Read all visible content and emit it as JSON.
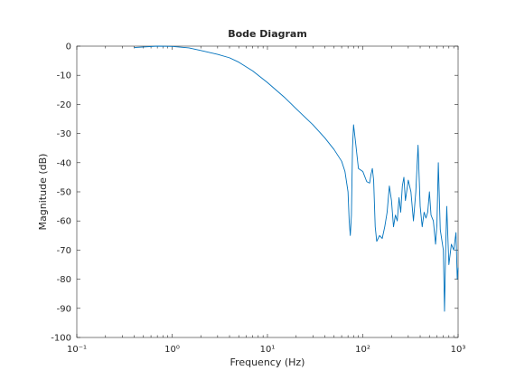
{
  "chart_data": {
    "type": "line",
    "title": "Bode Diagram",
    "xlabel": "Frequency  (Hz)",
    "ylabel": "Magnitude (dB)",
    "xscale": "log",
    "xlim": [
      0.1,
      1000
    ],
    "ylim": [
      -100,
      0
    ],
    "xticks": [
      {
        "value": 0.1,
        "label": "10⁻¹"
      },
      {
        "value": 1,
        "label": "10⁰"
      },
      {
        "value": 10,
        "label": "10¹"
      },
      {
        "value": 100,
        "label": "10²"
      },
      {
        "value": 1000,
        "label": "10³"
      }
    ],
    "xminorticks": [
      0.2,
      0.3,
      0.4,
      0.5,
      0.6,
      0.7,
      0.8,
      0.9,
      2,
      3,
      4,
      5,
      6,
      7,
      8,
      9,
      20,
      30,
      40,
      50,
      60,
      70,
      80,
      90,
      200,
      300,
      400,
      500,
      600,
      700,
      800,
      900
    ],
    "yticks": [
      -100,
      -90,
      -80,
      -70,
      -60,
      -50,
      -40,
      -30,
      -20,
      -10,
      0
    ],
    "series": [
      {
        "name": "Magnitude",
        "color": "#0072bd",
        "x": [
          0.4,
          0.5,
          0.7,
          1,
          1.5,
          2,
          3,
          4,
          5,
          7,
          10,
          15,
          20,
          30,
          40,
          50,
          60,
          65,
          70,
          72,
          74,
          76,
          78,
          80,
          84,
          90,
          100,
          110,
          118,
          122,
          126,
          130,
          135,
          140,
          150,
          160,
          170,
          180,
          190,
          200,
          210,
          220,
          230,
          240,
          250,
          260,
          270,
          280,
          300,
          320,
          340,
          360,
          380,
          400,
          420,
          440,
          460,
          480,
          500,
          520,
          550,
          580,
          600,
          620,
          650,
          700,
          720,
          740,
          760,
          800,
          850,
          900,
          950,
          980,
          1000
        ],
        "values": [
          -0.5,
          -0.3,
          0,
          -0.1,
          -0.6,
          -1.5,
          -2.8,
          -4,
          -5.5,
          -8.5,
          -12.5,
          -17.5,
          -21.5,
          -27,
          -31.5,
          -35.5,
          -39.5,
          -43,
          -50,
          -60,
          -65,
          -58,
          -35,
          -27,
          -33,
          -42,
          -43,
          -46.5,
          -47,
          -44,
          -42,
          -46,
          -62,
          -67,
          -65,
          -66,
          -62,
          -57,
          -48,
          -53,
          -62,
          -58,
          -60,
          -52,
          -57,
          -48,
          -45,
          -53,
          -46,
          -50,
          -60,
          -50,
          -34,
          -55,
          -62,
          -57,
          -59,
          -57,
          -50,
          -58,
          -60,
          -68,
          -61,
          -40,
          -63,
          -70,
          -91,
          -70,
          -55,
          -75,
          -68,
          -70,
          -64,
          -80,
          -76
        ]
      }
    ]
  }
}
